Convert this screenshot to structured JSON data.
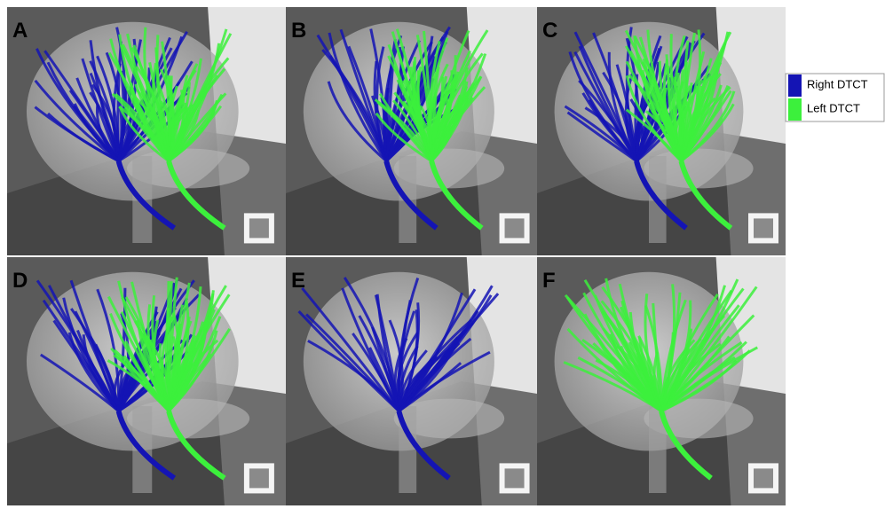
{
  "panels": [
    {
      "label": "A"
    },
    {
      "label": "B"
    },
    {
      "label": "C"
    },
    {
      "label": "D"
    },
    {
      "label": "E"
    },
    {
      "label": "F"
    }
  ],
  "legend": [
    {
      "label": "Right DTCT",
      "color": "#1414b4"
    },
    {
      "label": "Left DTCT",
      "color": "#3cf03c"
    }
  ]
}
